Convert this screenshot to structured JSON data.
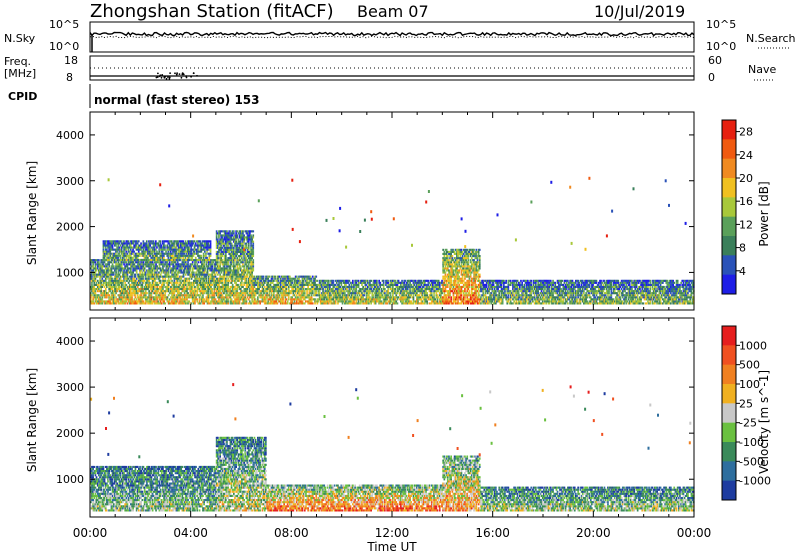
{
  "header": {
    "title": "Zhongshan Station (fitACF)",
    "beam": "Beam 07",
    "date": "10/Jul/2019"
  },
  "noise_panel": {
    "left_label": "N.Sky",
    "left_ticks": [
      "10^5",
      "10^0"
    ],
    "right_ticks": [
      "10^5",
      "10^0"
    ],
    "right_label": "N.Search"
  },
  "freq_panel": {
    "left_label_line1": "Freq.",
    "left_label_line2": "[MHz]",
    "left_ticks": [
      "18",
      "8"
    ],
    "right_ticks": [
      "60",
      "0"
    ],
    "right_label": "Nave"
  },
  "cpid": {
    "label": "CPID",
    "text": "normal (fast stereo) 153"
  },
  "colors": {
    "power_scale": [
      "#1e1ee6",
      "#2a52b8",
      "#3a7f5a",
      "#5aa05a",
      "#a8c83a",
      "#f0c020",
      "#f08a20",
      "#f05a10",
      "#e62010"
    ],
    "velocity_scale": [
      "#1e3ca0",
      "#2e6e9e",
      "#3a8a5a",
      "#6ac040",
      "#c8c8c8",
      "#f0b020",
      "#f08020",
      "#f05020",
      "#e61e1e"
    ]
  },
  "chart_data": [
    {
      "type": "heatmap",
      "title": "",
      "xlabel": "",
      "ylabel": "Slant Range [km]",
      "xlim": [
        "00:00",
        "00:00"
      ],
      "x_ticks": [
        "00:00",
        "04:00",
        "08:00",
        "12:00",
        "16:00",
        "20:00",
        "00:00"
      ],
      "ylim": [
        180,
        4500
      ],
      "y_ticks": [
        1000,
        2000,
        3000,
        4000
      ],
      "colorbar": {
        "label": "Power [dB]",
        "ticks": [
          "4",
          "8",
          "12",
          "16",
          "20",
          "24",
          "28"
        ],
        "range": [
          0,
          30
        ]
      },
      "echo_regions_hours_km": [
        {
          "t0": 0.0,
          "t1": 5.0,
          "r0": 300,
          "r1": 1250,
          "level": 0.6
        },
        {
          "t0": 0.5,
          "t1": 4.8,
          "r0": 1250,
          "r1": 1700,
          "level": 0.4
        },
        {
          "t0": 5.0,
          "t1": 6.5,
          "r0": 300,
          "r1": 1900,
          "level": 0.55
        },
        {
          "t0": 6.5,
          "t1": 9.0,
          "r0": 300,
          "r1": 900,
          "level": 0.65
        },
        {
          "t0": 9.0,
          "t1": 14.0,
          "r0": 300,
          "r1": 800,
          "level": 0.55
        },
        {
          "t0": 14.0,
          "t1": 15.5,
          "r0": 300,
          "r1": 1500,
          "level": 0.8
        },
        {
          "t0": 15.5,
          "t1": 24.0,
          "r0": 300,
          "r1": 800,
          "level": 0.45
        }
      ]
    },
    {
      "type": "heatmap",
      "title": "",
      "xlabel": "Time UT",
      "ylabel": "Slant Range [km]",
      "xlim": [
        "00:00",
        "00:00"
      ],
      "x_ticks": [
        "00:00",
        "04:00",
        "08:00",
        "12:00",
        "16:00",
        "20:00",
        "00:00"
      ],
      "ylim": [
        180,
        4500
      ],
      "y_ticks": [
        1000,
        2000,
        3000,
        4000
      ],
      "colorbar": {
        "label": "Velocity [m s^-1]",
        "ticks": [
          "1000",
          "500",
          "100",
          "25",
          "-25",
          "-100",
          "-500",
          "-1000"
        ],
        "range": [
          -1000,
          1000
        ]
      },
      "echo_regions_hours_km": [
        {
          "t0": 0.0,
          "t1": 5.0,
          "r0": 300,
          "r1": 1250,
          "level": 0.4
        },
        {
          "t0": 5.0,
          "t1": 7.0,
          "r0": 300,
          "r1": 1900,
          "level": 0.5
        },
        {
          "t0": 7.0,
          "t1": 14.0,
          "r0": 300,
          "r1": 850,
          "level": 0.8
        },
        {
          "t0": 14.0,
          "t1": 15.5,
          "r0": 300,
          "r1": 1500,
          "level": 0.7
        },
        {
          "t0": 15.5,
          "t1": 24.0,
          "r0": 300,
          "r1": 800,
          "level": 0.45
        }
      ]
    }
  ]
}
